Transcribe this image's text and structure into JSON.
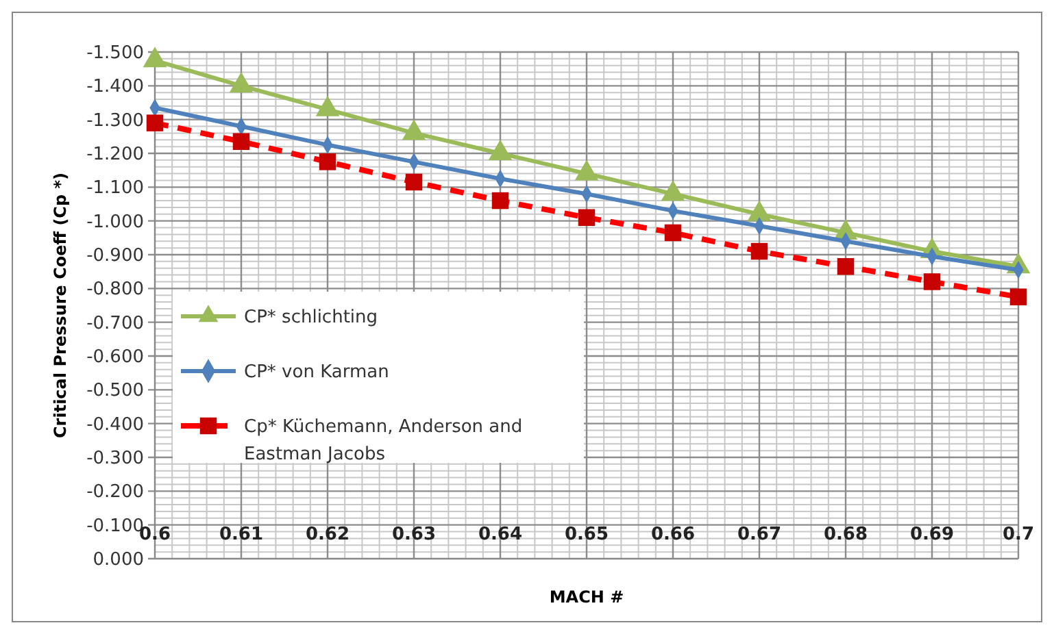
{
  "chart_data": {
    "type": "line",
    "xlabel": "MACH #",
    "ylabel": "Critical Pressure Coeff (Cp *)",
    "x": [
      0.6,
      0.61,
      0.62,
      0.63,
      0.64,
      0.65,
      0.66,
      0.67,
      0.68,
      0.69,
      0.7
    ],
    "xlim": [
      0.6,
      0.7
    ],
    "xticks": [
      0.6,
      0.61,
      0.62,
      0.63,
      0.64,
      0.65,
      0.66,
      0.67,
      0.68,
      0.69,
      0.7
    ],
    "ylim": [
      0,
      -1.5
    ],
    "yticks": [
      {
        "value": 0,
        "label": "0.000"
      },
      {
        "value": -0.1,
        "label": "-0.100"
      },
      {
        "value": -0.2,
        "label": "-0.200"
      },
      {
        "value": -0.3,
        "label": "-0.300"
      },
      {
        "value": -0.4,
        "label": "-0.400"
      },
      {
        "value": -0.5,
        "label": "-0.500"
      },
      {
        "value": -0.6,
        "label": "-0.600"
      },
      {
        "value": -0.7,
        "label": "-0.700"
      },
      {
        "value": -0.8,
        "label": "-0.800"
      },
      {
        "value": -0.9,
        "label": "-0.900"
      },
      {
        "value": -1,
        "label": "-1.000"
      },
      {
        "value": -1.1,
        "label": "-1.100"
      },
      {
        "value": -1.2,
        "label": "-1.200"
      },
      {
        "value": -1.3,
        "label": "-1.300"
      },
      {
        "value": -1.4,
        "label": "-1.400"
      },
      {
        "value": -1.5,
        "label": "-1.500"
      }
    ],
    "grid": true,
    "legend": "left",
    "series": [
      {
        "name": "CP* schlichting",
        "color": "#9bbb59",
        "marker": "triangle",
        "line_style": "solid",
        "values": [
          -1.475,
          -1.4,
          -1.33,
          -1.26,
          -1.2,
          -1.14,
          -1.08,
          -1.02,
          -0.965,
          -0.91,
          -0.865
        ]
      },
      {
        "name": "CP* von Karman",
        "color": "#4f81bd",
        "marker": "diamond",
        "line_style": "solid",
        "values": [
          -1.335,
          -1.28,
          -1.225,
          -1.175,
          -1.125,
          -1.08,
          -1.03,
          -0.985,
          -0.94,
          -0.895,
          -0.855
        ]
      },
      {
        "name": "Cp* Küchemann, Anderson and Eastman Jacobs",
        "color": "#ff0000",
        "marker": "square",
        "line_style": "dashed",
        "values": [
          -1.29,
          -1.235,
          -1.175,
          -1.115,
          -1.06,
          -1.01,
          -0.965,
          -0.91,
          -0.865,
          -0.82,
          -0.775
        ]
      }
    ]
  }
}
